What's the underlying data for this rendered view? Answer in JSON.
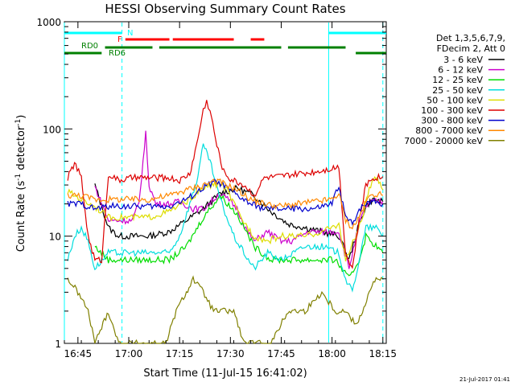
{
  "chart_data": {
    "type": "line",
    "title": "HESSI Observing Summary Count Rates",
    "xlabel": "Start Time (11-Jul-15 16:41:02)",
    "ylabel_parts": [
      "Count Rate (s",
      "-1",
      " detector",
      "-1",
      ")"
    ],
    "y_scale": "log",
    "ylim": [
      1,
      1000
    ],
    "xlim_min": [
      0,
      95
    ],
    "x_tick_labels": [
      "16:45",
      "17:00",
      "17:15",
      "17:30",
      "17:45",
      "18:00",
      "18:15"
    ],
    "x_tick_min": [
      4,
      19,
      34,
      49,
      64,
      79,
      94
    ],
    "y_tick_labels": [
      "1",
      "10",
      "100",
      "1000"
    ],
    "y_tick_values": [
      1,
      10,
      100,
      1000
    ],
    "legend_header": [
      "Det 1,3,5,6,7,9,",
      "FDecim 2, Att 0"
    ],
    "series": [
      {
        "name": "3 - 6 keV",
        "color": "#000000",
        "points": [
          [
            9,
            30
          ],
          [
            13,
            12
          ],
          [
            16,
            10
          ],
          [
            20,
            10
          ],
          [
            25,
            10
          ],
          [
            31,
            11
          ],
          [
            36,
            14
          ],
          [
            41,
            18
          ],
          [
            46,
            25
          ],
          [
            51,
            28
          ],
          [
            56,
            24
          ],
          [
            61,
            17
          ],
          [
            66,
            13
          ],
          [
            71,
            12
          ],
          [
            76,
            11
          ],
          [
            81,
            10
          ],
          [
            84,
            6
          ],
          [
            87,
            13
          ],
          [
            89,
            19
          ],
          [
            91,
            22
          ],
          [
            94,
            21
          ]
        ]
      },
      {
        "name": "6 - 12 keV",
        "color": "#cc00cc",
        "points": [
          [
            9,
            29
          ],
          [
            13,
            14
          ],
          [
            16,
            14
          ],
          [
            20,
            14
          ],
          [
            22,
            20
          ],
          [
            24,
            90
          ],
          [
            25,
            30
          ],
          [
            27,
            20
          ],
          [
            31,
            20
          ],
          [
            34,
            21
          ],
          [
            38,
            18
          ],
          [
            41,
            18
          ],
          [
            44,
            22
          ],
          [
            46,
            25
          ],
          [
            49,
            21
          ],
          [
            51,
            18
          ],
          [
            54,
            11
          ],
          [
            56,
            9
          ],
          [
            60,
            11
          ],
          [
            64,
            9
          ],
          [
            67,
            9
          ],
          [
            72,
            11
          ],
          [
            76,
            11
          ],
          [
            81,
            11
          ],
          [
            84,
            5
          ],
          [
            87,
            13
          ],
          [
            89,
            19
          ],
          [
            91,
            21
          ],
          [
            94,
            21
          ]
        ]
      },
      {
        "name": "12 - 25 keV",
        "color": "#00dd00",
        "points": [
          [
            9,
            8
          ],
          [
            13,
            6
          ],
          [
            20,
            6
          ],
          [
            26,
            6
          ],
          [
            31,
            6
          ],
          [
            36,
            8
          ],
          [
            41,
            15
          ],
          [
            46,
            24
          ],
          [
            51,
            16
          ],
          [
            56,
            8
          ],
          [
            61,
            6
          ],
          [
            71,
            6
          ],
          [
            80,
            6
          ],
          [
            84,
            4
          ],
          [
            87,
            6
          ],
          [
            89,
            10
          ],
          [
            94,
            7
          ]
        ]
      },
      {
        "name": "25 - 50 keV",
        "color": "#00dddd",
        "points": [
          [
            1,
            6
          ],
          [
            3,
            10
          ],
          [
            5,
            12
          ],
          [
            7,
            9
          ],
          [
            9,
            5
          ],
          [
            13,
            7
          ],
          [
            20,
            7
          ],
          [
            26,
            7
          ],
          [
            31,
            7
          ],
          [
            34,
            10
          ],
          [
            37,
            20
          ],
          [
            39,
            32
          ],
          [
            41,
            70
          ],
          [
            43,
            50
          ],
          [
            45,
            28
          ],
          [
            47,
            18
          ],
          [
            50,
            10
          ],
          [
            53,
            7
          ],
          [
            56,
            5
          ],
          [
            60,
            7
          ],
          [
            64,
            6
          ],
          [
            71,
            8
          ],
          [
            76,
            8
          ],
          [
            81,
            7
          ],
          [
            83,
            4
          ],
          [
            85,
            3
          ],
          [
            87,
            6
          ],
          [
            89,
            12
          ],
          [
            92,
            12
          ],
          [
            94,
            10
          ]
        ]
      },
      {
        "name": "50 - 100 keV",
        "color": "#dddd00",
        "points": [
          [
            1,
            26
          ],
          [
            5,
            22
          ],
          [
            9,
            19
          ],
          [
            13,
            15
          ],
          [
            16,
            15
          ],
          [
            20,
            15
          ],
          [
            25,
            15
          ],
          [
            31,
            17
          ],
          [
            37,
            22
          ],
          [
            41,
            28
          ],
          [
            44,
            30
          ],
          [
            46,
            31
          ],
          [
            48,
            27
          ],
          [
            50,
            20
          ],
          [
            52,
            15
          ],
          [
            56,
            10
          ],
          [
            60,
            9
          ],
          [
            64,
            10
          ],
          [
            71,
            10
          ],
          [
            76,
            11
          ],
          [
            81,
            13
          ],
          [
            83,
            6
          ],
          [
            86,
            10
          ],
          [
            88,
            15
          ],
          [
            90,
            28
          ],
          [
            92,
            35
          ],
          [
            94,
            27
          ]
        ]
      },
      {
        "name": "100 - 300 keV",
        "color": "#dd0000",
        "points": [
          [
            1,
            35
          ],
          [
            3,
            48
          ],
          [
            5,
            35
          ],
          [
            7,
            10
          ],
          [
            9,
            6
          ],
          [
            11,
            6
          ],
          [
            13,
            38
          ],
          [
            16,
            33
          ],
          [
            20,
            35
          ],
          [
            25,
            35
          ],
          [
            31,
            35
          ],
          [
            34,
            33
          ],
          [
            37,
            38
          ],
          [
            39,
            70
          ],
          [
            41,
            150
          ],
          [
            42,
            180
          ],
          [
            43,
            150
          ],
          [
            45,
            70
          ],
          [
            47,
            40
          ],
          [
            49,
            34
          ],
          [
            51,
            32
          ],
          [
            53,
            30
          ],
          [
            56,
            24
          ],
          [
            59,
            35
          ],
          [
            64,
            36
          ],
          [
            69,
            38
          ],
          [
            74,
            40
          ],
          [
            79,
            43
          ],
          [
            81,
            45
          ],
          [
            83,
            7
          ],
          [
            85,
            5
          ],
          [
            87,
            14
          ],
          [
            89,
            30
          ],
          [
            91,
            35
          ],
          [
            94,
            36
          ]
        ]
      },
      {
        "name": "300 - 800 keV",
        "color": "#0000cc",
        "points": [
          [
            1,
            20
          ],
          [
            5,
            20
          ],
          [
            9,
            18
          ],
          [
            13,
            19
          ],
          [
            16,
            19
          ],
          [
            20,
            19
          ],
          [
            25,
            19
          ],
          [
            31,
            19
          ],
          [
            36,
            22
          ],
          [
            41,
            28
          ],
          [
            44,
            32
          ],
          [
            46,
            31
          ],
          [
            48,
            28
          ],
          [
            51,
            24
          ],
          [
            55,
            20
          ],
          [
            59,
            18
          ],
          [
            64,
            18
          ],
          [
            69,
            18
          ],
          [
            74,
            18
          ],
          [
            79,
            20
          ],
          [
            81,
            30
          ],
          [
            83,
            15
          ],
          [
            85,
            13
          ],
          [
            87,
            18
          ],
          [
            89,
            20
          ],
          [
            91,
            22
          ],
          [
            94,
            20
          ]
        ]
      },
      {
        "name": "800 - 7000 keV",
        "color": "#ff8800",
        "points": [
          [
            1,
            24
          ],
          [
            5,
            24
          ],
          [
            9,
            22
          ],
          [
            13,
            22
          ],
          [
            16,
            22
          ],
          [
            20,
            22
          ],
          [
            25,
            22
          ],
          [
            31,
            24
          ],
          [
            36,
            27
          ],
          [
            41,
            30
          ],
          [
            44,
            33
          ],
          [
            46,
            32
          ],
          [
            48,
            30
          ],
          [
            51,
            27
          ],
          [
            55,
            22
          ],
          [
            59,
            20
          ],
          [
            64,
            19
          ],
          [
            69,
            20
          ],
          [
            74,
            21
          ],
          [
            79,
            22
          ],
          [
            81,
            25
          ],
          [
            83,
            14
          ],
          [
            85,
            12
          ],
          [
            87,
            15
          ],
          [
            89,
            21
          ],
          [
            91,
            25
          ],
          [
            94,
            24
          ]
        ]
      },
      {
        "name": "7000 - 20000 keV",
        "color": "#808000",
        "points": [
          [
            1,
            4
          ],
          [
            4,
            3
          ],
          [
            7,
            2
          ],
          [
            9,
            1
          ],
          [
            13,
            2
          ],
          [
            16,
            1
          ],
          [
            20,
            1
          ],
          [
            25,
            1
          ],
          [
            30,
            1
          ],
          [
            33,
            2
          ],
          [
            36,
            3
          ],
          [
            38,
            4
          ],
          [
            41,
            3
          ],
          [
            44,
            2
          ],
          [
            47,
            2
          ],
          [
            50,
            2
          ],
          [
            53,
            1
          ],
          [
            56,
            1
          ],
          [
            61,
            1
          ],
          [
            66,
            2
          ],
          [
            71,
            2
          ],
          [
            76,
            3
          ],
          [
            80,
            2
          ],
          [
            83,
            2
          ],
          [
            86,
            1.5
          ],
          [
            88,
            2
          ],
          [
            90,
            3
          ],
          [
            92,
            4
          ],
          [
            94,
            4
          ]
        ]
      }
    ],
    "status_bars": [
      {
        "label": "N",
        "color": "#00ffff",
        "level": 3,
        "segments": [
          [
            0,
            17
          ],
          [
            78,
            95
          ]
        ]
      },
      {
        "label": "F",
        "color": "#ff0000",
        "level": 2,
        "segments": [
          [
            18,
            31
          ],
          [
            32,
            50
          ],
          [
            55,
            59
          ]
        ]
      },
      {
        "label": "RD0",
        "color": "#008000",
        "level": 1,
        "segments": [
          [
            12,
            26
          ],
          [
            28,
            64
          ],
          [
            66,
            83
          ]
        ]
      },
      {
        "label": "RD6",
        "color": "#008000",
        "level": 0,
        "segments": [
          [
            0,
            11
          ],
          [
            86,
            95
          ]
        ]
      }
    ],
    "saa_lines_min": [
      0,
      17,
      78,
      94
    ],
    "footer": "21-Jul-2017 01:41"
  }
}
